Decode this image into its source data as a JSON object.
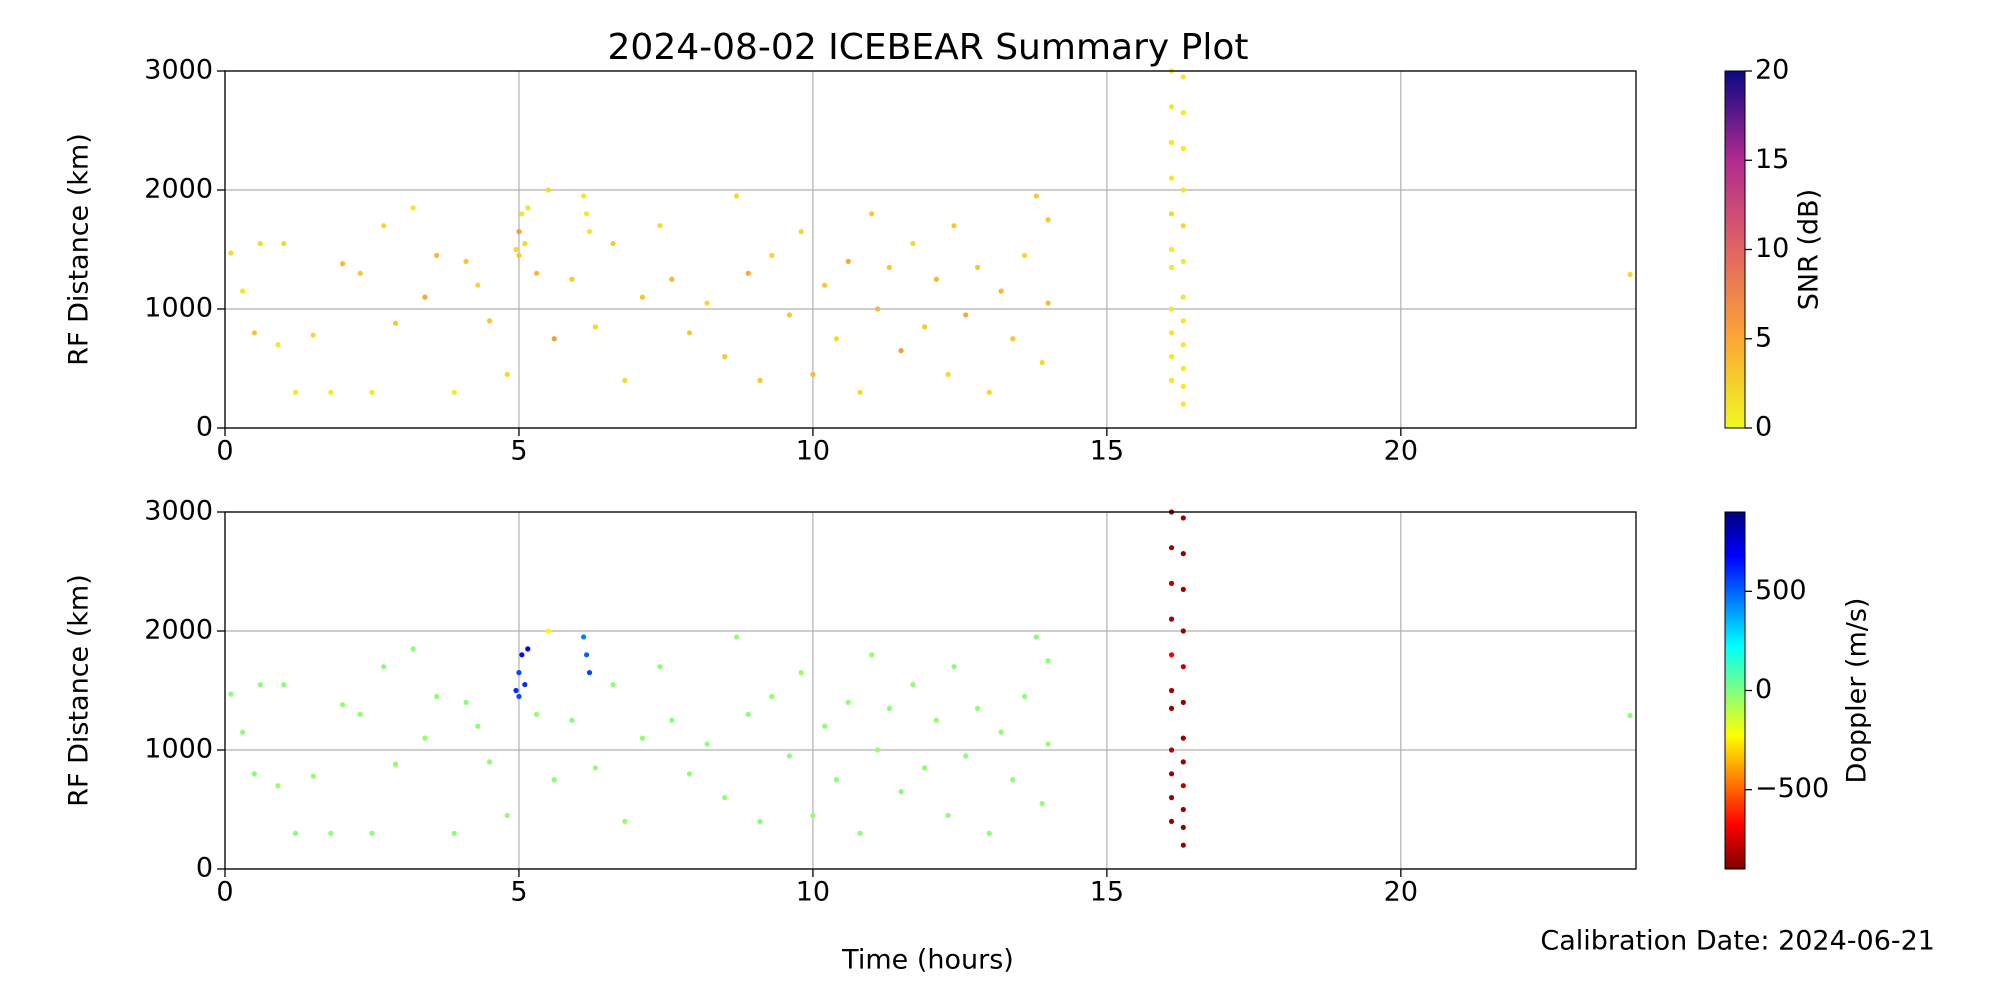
{
  "chart_data": [
    {
      "type": "scatter",
      "title": "2024-08-02 ICEBEAR Summary Plot",
      "ylabel": "RF Distance (km)",
      "xlim": [
        0,
        24
      ],
      "ylim": [
        0,
        3000
      ],
      "xticks": [
        0,
        5,
        10,
        15,
        20
      ],
      "yticks": [
        0,
        1000,
        2000,
        3000
      ],
      "grid": true,
      "colorbar": {
        "label": "SNR (dB)",
        "colormap": "plasma_r",
        "lim": [
          0,
          20
        ],
        "ticks": [
          0,
          5,
          10,
          15,
          20
        ]
      },
      "x": [
        0.1,
        0.3,
        0.5,
        0.6,
        0.9,
        1.0,
        1.2,
        1.5,
        1.8,
        2.0,
        2.3,
        2.5,
        2.7,
        2.9,
        3.2,
        3.4,
        3.6,
        3.9,
        4.1,
        4.3,
        4.5,
        4.8,
        5.3,
        5.6,
        5.9,
        6.3,
        6.6,
        6.8,
        7.1,
        7.4,
        7.6,
        7.9,
        8.2,
        8.5,
        8.7,
        8.9,
        9.1,
        9.3,
        9.6,
        9.8,
        10.0,
        10.2,
        10.4,
        10.6,
        10.8,
        11.0,
        11.1,
        11.3,
        11.5,
        11.7,
        11.9,
        12.1,
        12.3,
        12.4,
        12.6,
        12.8,
        13.0,
        13.2,
        13.4,
        13.6,
        13.8,
        13.9,
        14.0,
        14.0,
        4.95,
        5.0,
        5.05,
        5.1,
        5.15,
        5.0,
        6.1,
        6.15,
        6.2,
        5.5,
        16.1,
        16.1,
        16.1,
        16.1,
        16.1,
        16.1,
        16.1,
        16.1,
        16.1,
        16.1,
        16.1,
        16.3,
        16.3,
        16.3,
        16.3,
        16.3,
        16.3,
        16.3,
        16.3,
        16.3,
        16.3,
        16.3,
        16.3,
        23.9
      ],
      "y": [
        1470,
        1150,
        800,
        1550,
        700,
        1550,
        300,
        780,
        300,
        1380,
        1300,
        300,
        1700,
        880,
        1850,
        1100,
        1450,
        300,
        1400,
        1200,
        900,
        450,
        1300,
        750,
        1250,
        850,
        1550,
        400,
        1100,
        1700,
        1250,
        800,
        1050,
        600,
        1950,
        1300,
        400,
        1450,
        950,
        1650,
        450,
        1200,
        750,
        1400,
        300,
        1800,
        1000,
        1350,
        650,
        1550,
        850,
        1250,
        450,
        1700,
        950,
        1350,
        300,
        1150,
        750,
        1450,
        1950,
        550,
        1750,
        1050,
        1500,
        1650,
        1800,
        1550,
        1850,
        1450,
        1950,
        1800,
        1650,
        2000,
        3000,
        2700,
        2400,
        2100,
        1800,
        1500,
        1350,
        1000,
        800,
        600,
        400,
        2950,
        2650,
        2350,
        2000,
        1700,
        1400,
        1100,
        900,
        700,
        500,
        350,
        200,
        1290
      ],
      "c": [
        2,
        1,
        3,
        2,
        1,
        2,
        1,
        2,
        1,
        4,
        3,
        1,
        2,
        3,
        1,
        5,
        4,
        1,
        3,
        2,
        3,
        2,
        4,
        6,
        3,
        2,
        3,
        2,
        3,
        2,
        4,
        3,
        2,
        3,
        2,
        5,
        3,
        2,
        3,
        2,
        4,
        3,
        2,
        5,
        2,
        3,
        4,
        3,
        6,
        2,
        3,
        4,
        2,
        3,
        5,
        3,
        2,
        4,
        3,
        2,
        3,
        2,
        3,
        4,
        2,
        6,
        1,
        2,
        1,
        3,
        1,
        1,
        1,
        2,
        1,
        1,
        1,
        1,
        2,
        1,
        1,
        1,
        1,
        1,
        1,
        1,
        1,
        1,
        1,
        2,
        1,
        1,
        1,
        1,
        1,
        1,
        1,
        2
      ]
    },
    {
      "type": "scatter",
      "ylabel": "RF Distance (km)",
      "xlabel": "Time (hours)",
      "xlim": [
        0,
        24
      ],
      "ylim": [
        0,
        3000
      ],
      "xticks": [
        0,
        5,
        10,
        15,
        20
      ],
      "yticks": [
        0,
        1000,
        2000,
        3000
      ],
      "grid": true,
      "colorbar": {
        "label": "Doppler (m/s)",
        "colormap": "jet_r",
        "lim": [
          -900,
          900
        ],
        "ticks": [
          {
            "value": -500,
            "label": "−500"
          },
          0,
          500
        ]
      },
      "x": [
        0.1,
        0.3,
        0.5,
        0.6,
        0.9,
        1.0,
        1.2,
        1.5,
        1.8,
        2.0,
        2.3,
        2.5,
        2.7,
        2.9,
        3.2,
        3.4,
        3.6,
        3.9,
        4.1,
        4.3,
        4.5,
        4.8,
        5.3,
        5.6,
        5.9,
        6.3,
        6.6,
        6.8,
        7.1,
        7.4,
        7.6,
        7.9,
        8.2,
        8.5,
        8.7,
        8.9,
        9.1,
        9.3,
        9.6,
        9.8,
        10.0,
        10.2,
        10.4,
        10.6,
        10.8,
        11.0,
        11.1,
        11.3,
        11.5,
        11.7,
        11.9,
        12.1,
        12.3,
        12.4,
        12.6,
        12.8,
        13.0,
        13.2,
        13.4,
        13.6,
        13.8,
        13.9,
        14.0,
        14.0,
        4.95,
        5.0,
        5.05,
        5.1,
        5.15,
        5.0,
        6.1,
        6.15,
        6.2,
        5.5,
        16.1,
        16.1,
        16.1,
        16.1,
        16.1,
        16.1,
        16.1,
        16.1,
        16.1,
        16.1,
        16.1,
        16.3,
        16.3,
        16.3,
        16.3,
        16.3,
        16.3,
        16.3,
        16.3,
        16.3,
        16.3,
        16.3,
        16.3,
        23.9
      ],
      "y": [
        1470,
        1150,
        800,
        1550,
        700,
        1550,
        300,
        780,
        300,
        1380,
        1300,
        300,
        1700,
        880,
        1850,
        1100,
        1450,
        300,
        1400,
        1200,
        900,
        450,
        1300,
        750,
        1250,
        850,
        1550,
        400,
        1100,
        1700,
        1250,
        800,
        1050,
        600,
        1950,
        1300,
        400,
        1450,
        950,
        1650,
        450,
        1200,
        750,
        1400,
        300,
        1800,
        1000,
        1350,
        650,
        1550,
        850,
        1250,
        450,
        1700,
        950,
        1350,
        300,
        1150,
        750,
        1450,
        1950,
        550,
        1750,
        1050,
        1500,
        1650,
        1800,
        1550,
        1850,
        1450,
        1950,
        1800,
        1650,
        2000,
        3000,
        2700,
        2400,
        2100,
        1800,
        1500,
        1350,
        1000,
        800,
        600,
        400,
        2950,
        2650,
        2350,
        2000,
        1700,
        1400,
        1100,
        900,
        700,
        500,
        350,
        200,
        1290
      ],
      "c": [
        -20,
        -30,
        -10,
        -20,
        -40,
        -20,
        -10,
        -30,
        -20,
        -40,
        -30,
        -20,
        -10,
        -30,
        -20,
        -40,
        -30,
        -20,
        -10,
        -30,
        -20,
        -40,
        -30,
        -20,
        -10,
        -30,
        -20,
        -40,
        -30,
        -20,
        -10,
        -30,
        -20,
        -40,
        -30,
        -20,
        -10,
        -30,
        -20,
        -40,
        -30,
        -20,
        -10,
        -30,
        -20,
        -40,
        -30,
        -20,
        -10,
        -30,
        -20,
        -40,
        -30,
        -20,
        -10,
        -30,
        -20,
        -40,
        -30,
        -20,
        -10,
        -30,
        -20,
        -40,
        600,
        550,
        650,
        600,
        700,
        550,
        450,
        500,
        550,
        -250,
        -850,
        -850,
        -800,
        -850,
        -700,
        -850,
        -850,
        -800,
        -850,
        -850,
        -850,
        -850,
        -850,
        -850,
        -850,
        -800,
        -850,
        -850,
        -850,
        -800,
        -850,
        -850,
        -850,
        -20
      ]
    }
  ],
  "annotation": "Calibration Date: 2024-06-21"
}
